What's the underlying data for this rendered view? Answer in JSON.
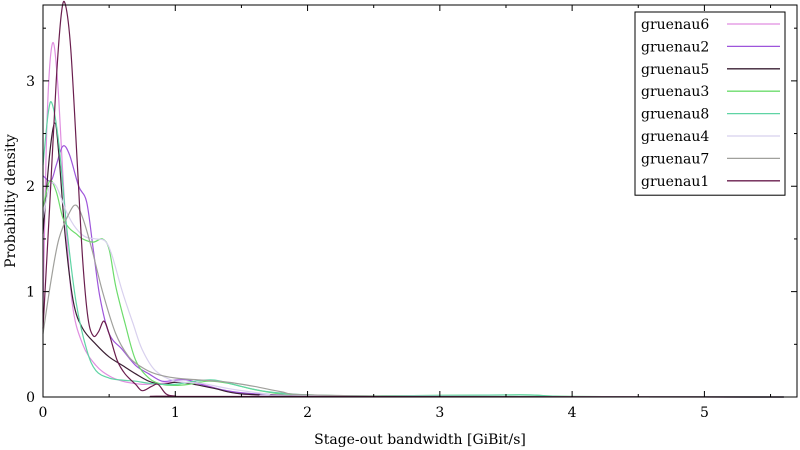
{
  "chart_data": {
    "type": "line",
    "title": "",
    "xlabel": "Stage-out bandwidth [GiBit/s]",
    "ylabel": "Probability density",
    "xlim": [
      0,
      5.7
    ],
    "ylim": [
      0,
      3.72
    ],
    "xticks": [
      0,
      1,
      2,
      3,
      4,
      5
    ],
    "yticks": [
      0,
      1,
      2,
      3
    ],
    "grid": false,
    "legend_position": "top-right",
    "series": [
      {
        "name": "gruenau6",
        "color": "#e08ee0",
        "points": [
          [
            0,
            0.8
          ],
          [
            0.03,
            2.6
          ],
          [
            0.07,
            3.35
          ],
          [
            0.11,
            3.0
          ],
          [
            0.16,
            1.9
          ],
          [
            0.22,
            0.9
          ],
          [
            0.3,
            0.5
          ],
          [
            0.4,
            0.3
          ],
          [
            0.5,
            0.2
          ],
          [
            0.6,
            0.15
          ],
          [
            0.75,
            0.12
          ],
          [
            0.9,
            0.13
          ],
          [
            1.0,
            0.14
          ],
          [
            1.2,
            0.12
          ],
          [
            1.4,
            0.05
          ],
          [
            1.6,
            0.02
          ],
          [
            2.0,
            0.01
          ],
          [
            3.0,
            0.005
          ],
          [
            4.0,
            0.003
          ],
          [
            5.6,
            0.0
          ]
        ]
      },
      {
        "name": "gruenau2",
        "color": "#9e55db",
        "points": [
          [
            0,
            2.1
          ],
          [
            0.06,
            2.05
          ],
          [
            0.1,
            2.2
          ],
          [
            0.15,
            2.38
          ],
          [
            0.2,
            2.3
          ],
          [
            0.27,
            2.0
          ],
          [
            0.33,
            1.85
          ],
          [
            0.38,
            1.4
          ],
          [
            0.43,
            0.95
          ],
          [
            0.5,
            0.6
          ],
          [
            0.6,
            0.45
          ],
          [
            0.7,
            0.3
          ],
          [
            0.8,
            0.22
          ],
          [
            0.9,
            0.15
          ],
          [
            1.0,
            0.16
          ],
          [
            1.1,
            0.16
          ],
          [
            1.25,
            0.1
          ],
          [
            1.5,
            0.04
          ],
          [
            2.0,
            0.01
          ],
          [
            3.0,
            0.005
          ],
          [
            5.6,
            0.0
          ]
        ]
      },
      {
        "name": "gruenau5",
        "color": "#3a1f33",
        "points": [
          [
            0,
            1.55
          ],
          [
            0.05,
            2.3
          ],
          [
            0.09,
            2.6
          ],
          [
            0.12,
            2.3
          ],
          [
            0.17,
            1.5
          ],
          [
            0.23,
            0.9
          ],
          [
            0.3,
            0.65
          ],
          [
            0.4,
            0.5
          ],
          [
            0.5,
            0.38
          ],
          [
            0.6,
            0.3
          ],
          [
            0.7,
            0.22
          ],
          [
            0.8,
            0.15
          ],
          [
            0.9,
            0.12
          ],
          [
            1.0,
            0.14
          ],
          [
            1.1,
            0.13
          ],
          [
            1.3,
            0.08
          ],
          [
            1.5,
            0.03
          ],
          [
            2.0,
            0.01
          ],
          [
            3.0,
            0.005
          ],
          [
            5.6,
            0.0
          ]
        ]
      },
      {
        "name": "gruenau3",
        "color": "#6cdc6c",
        "points": [
          [
            0,
            1.8
          ],
          [
            0.05,
            2.05
          ],
          [
            0.1,
            1.95
          ],
          [
            0.15,
            1.7
          ],
          [
            0.2,
            1.6
          ],
          [
            0.25,
            1.55
          ],
          [
            0.3,
            1.5
          ],
          [
            0.38,
            1.47
          ],
          [
            0.45,
            1.5
          ],
          [
            0.5,
            1.4
          ],
          [
            0.55,
            1.05
          ],
          [
            0.62,
            0.7
          ],
          [
            0.7,
            0.35
          ],
          [
            0.8,
            0.18
          ],
          [
            0.9,
            0.12
          ],
          [
            1.0,
            0.11
          ],
          [
            1.1,
            0.12
          ],
          [
            1.25,
            0.15
          ],
          [
            1.4,
            0.13
          ],
          [
            1.6,
            0.07
          ],
          [
            1.8,
            0.03
          ],
          [
            2.0,
            0.02
          ],
          [
            2.5,
            0.01
          ],
          [
            3.6,
            0.02
          ],
          [
            4.0,
            0.005
          ],
          [
            5.6,
            0.0
          ]
        ]
      },
      {
        "name": "gruenau8",
        "color": "#5fd4a4",
        "points": [
          [
            0,
            2.2
          ],
          [
            0.04,
            2.7
          ],
          [
            0.07,
            2.78
          ],
          [
            0.12,
            2.4
          ],
          [
            0.18,
            1.6
          ],
          [
            0.25,
            0.9
          ],
          [
            0.33,
            0.45
          ],
          [
            0.4,
            0.25
          ],
          [
            0.5,
            0.18
          ],
          [
            0.6,
            0.16
          ],
          [
            0.7,
            0.15
          ],
          [
            0.8,
            0.13
          ],
          [
            0.9,
            0.12
          ],
          [
            1.0,
            0.12
          ],
          [
            1.15,
            0.15
          ],
          [
            1.3,
            0.16
          ],
          [
            1.5,
            0.1
          ],
          [
            1.7,
            0.05
          ],
          [
            2.0,
            0.02
          ],
          [
            2.5,
            0.01
          ],
          [
            3.6,
            0.02
          ],
          [
            4.0,
            0.005
          ],
          [
            5.6,
            0.0
          ]
        ]
      },
      {
        "name": "gruenau4",
        "color": "#d8d0ee",
        "points": [
          [
            0,
            1.7
          ],
          [
            0.05,
            2.0
          ],
          [
            0.1,
            2.0
          ],
          [
            0.18,
            1.75
          ],
          [
            0.25,
            1.6
          ],
          [
            0.32,
            1.52
          ],
          [
            0.4,
            1.5
          ],
          [
            0.47,
            1.48
          ],
          [
            0.52,
            1.35
          ],
          [
            0.6,
            1.0
          ],
          [
            0.68,
            0.7
          ],
          [
            0.75,
            0.45
          ],
          [
            0.85,
            0.25
          ],
          [
            1.0,
            0.15
          ],
          [
            1.2,
            0.13
          ],
          [
            1.4,
            0.08
          ],
          [
            1.7,
            0.03
          ],
          [
            2.0,
            0.01
          ],
          [
            5.6,
            0.0
          ]
        ]
      },
      {
        "name": "gruenau7",
        "color": "#a0a09c",
        "points": [
          [
            0,
            0.6
          ],
          [
            0.06,
            1.1
          ],
          [
            0.12,
            1.5
          ],
          [
            0.2,
            1.75
          ],
          [
            0.25,
            1.82
          ],
          [
            0.3,
            1.7
          ],
          [
            0.37,
            1.4
          ],
          [
            0.45,
            1.0
          ],
          [
            0.55,
            0.6
          ],
          [
            0.65,
            0.38
          ],
          [
            0.75,
            0.28
          ],
          [
            0.85,
            0.22
          ],
          [
            1.0,
            0.18
          ],
          [
            1.2,
            0.16
          ],
          [
            1.4,
            0.14
          ],
          [
            1.6,
            0.1
          ],
          [
            1.8,
            0.05
          ],
          [
            2.0,
            0.02
          ],
          [
            3.0,
            0.005
          ],
          [
            5.6,
            0.0
          ]
        ]
      },
      {
        "name": "gruenau1",
        "color": "#6a1e4e",
        "points": [
          [
            0,
            0.65
          ],
          [
            0.05,
            1.8
          ],
          [
            0.1,
            3.0
          ],
          [
            0.14,
            3.65
          ],
          [
            0.17,
            3.72
          ],
          [
            0.21,
            3.3
          ],
          [
            0.26,
            2.2
          ],
          [
            0.3,
            1.3
          ],
          [
            0.34,
            0.75
          ],
          [
            0.38,
            0.58
          ],
          [
            0.42,
            0.62
          ],
          [
            0.46,
            0.72
          ],
          [
            0.5,
            0.6
          ],
          [
            0.56,
            0.35
          ],
          [
            0.62,
            0.22
          ],
          [
            0.7,
            0.12
          ],
          [
            0.75,
            0.06
          ],
          [
            0.82,
            0.1
          ],
          [
            0.87,
            0.12
          ],
          [
            0.93,
            0.03
          ],
          [
            1.0,
            0.01
          ],
          [
            1.2,
            0.005
          ],
          [
            5.6,
            0.0
          ]
        ]
      }
    ]
  }
}
